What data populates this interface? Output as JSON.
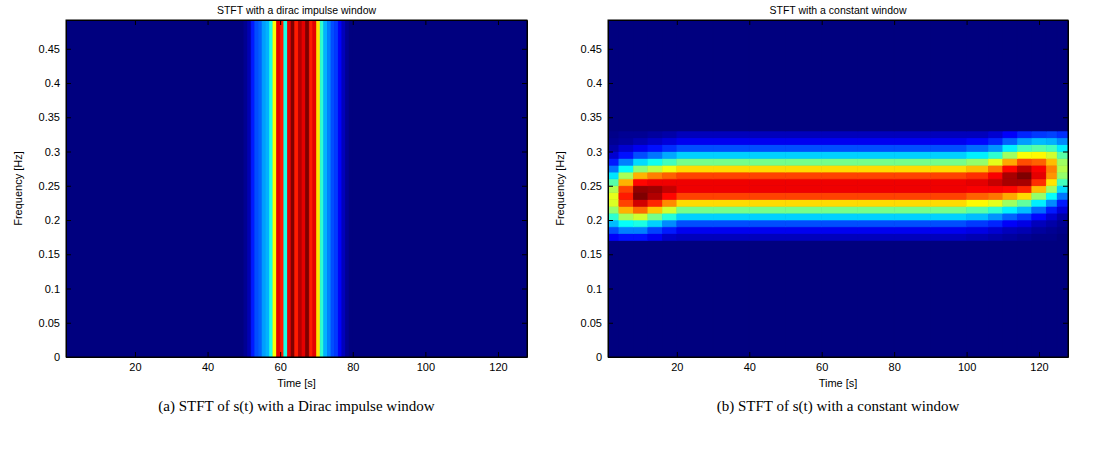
{
  "chart_data": [
    {
      "type": "heatmap",
      "title": "STFT with a dirac impulse window",
      "caption": "(a) STFT of s(t) with a Dirac impulse window",
      "x_label": "Time [s]",
      "y_label": "Frequency [Hz]",
      "xlim": [
        1,
        128
      ],
      "ylim": [
        0,
        0.492
      ],
      "xticks": [
        20,
        40,
        60,
        80,
        100,
        120
      ],
      "yticks": [
        0,
        0.05,
        0.1,
        0.15,
        0.2,
        0.25,
        0.3,
        0.35,
        0.4,
        0.45
      ],
      "zlim": [
        0,
        1
      ],
      "x_edges": [
        1,
        50,
        51,
        52,
        53,
        54,
        55,
        56,
        57,
        58,
        59,
        60,
        61,
        62,
        63,
        64,
        65,
        66,
        67,
        68,
        69,
        70,
        71,
        72,
        73,
        74,
        75,
        76,
        77,
        78,
        79,
        80,
        128
      ],
      "y_edges": [
        0,
        0.492
      ],
      "z": [
        [
          0,
          0.02,
          0.05,
          0.15,
          0.2,
          0.22,
          0.28,
          0.3,
          0.4,
          0.62,
          0.9,
          0.85,
          0.4,
          0.9,
          1,
          0.85,
          0.95,
          0.9,
          1,
          0.85,
          0.9,
          0.65,
          0.42,
          0.3,
          0.25,
          0.2,
          0.18,
          0.12,
          0.06,
          0.02,
          0,
          0
        ]
      ]
    },
    {
      "type": "heatmap",
      "title": "STFT with a constant window",
      "caption": "(b) STFT of s(t) with a constant window",
      "x_label": "Time [s]",
      "y_label": "Frequency [Hz]",
      "xlim": [
        1,
        128
      ],
      "ylim": [
        0,
        0.492
      ],
      "xticks": [
        20,
        40,
        60,
        80,
        100,
        120
      ],
      "yticks": [
        0,
        0.05,
        0.1,
        0.15,
        0.2,
        0.25,
        0.3,
        0.35,
        0.4,
        0.45
      ],
      "zlim": [
        0,
        1
      ],
      "x_edges": [
        1,
        4,
        8,
        12,
        16,
        20,
        30,
        40,
        50,
        60,
        70,
        80,
        90,
        100,
        106,
        110,
        114,
        118,
        122,
        125,
        128
      ],
      "y_edges": [
        0,
        0.17,
        0.18,
        0.19,
        0.2,
        0.21,
        0.22,
        0.23,
        0.24,
        0.25,
        0.26,
        0.27,
        0.28,
        0.29,
        0.3,
        0.31,
        0.32,
        0.33,
        0.492
      ],
      "z": [
        [
          0,
          0,
          0,
          0,
          0,
          0,
          0,
          0,
          0,
          0,
          0,
          0,
          0,
          0,
          0,
          0,
          0,
          0,
          0,
          0
        ],
        [
          0.12,
          0.14,
          0.14,
          0.11,
          0.07,
          0.06,
          0.06,
          0.06,
          0.06,
          0.06,
          0.06,
          0.06,
          0.06,
          0.05,
          0.04,
          0.03,
          0.02,
          0.01,
          0.01,
          0
        ],
        [
          0.2,
          0.25,
          0.25,
          0.19,
          0.15,
          0.11,
          0.11,
          0.11,
          0.11,
          0.11,
          0.11,
          0.11,
          0.11,
          0.1,
          0.08,
          0.06,
          0.05,
          0.03,
          0.02,
          0.01
        ],
        [
          0.31,
          0.38,
          0.4,
          0.33,
          0.26,
          0.2,
          0.2,
          0.2,
          0.2,
          0.2,
          0.2,
          0.2,
          0.2,
          0.18,
          0.16,
          0.12,
          0.1,
          0.06,
          0.04,
          0.02
        ],
        [
          0.42,
          0.54,
          0.58,
          0.49,
          0.41,
          0.33,
          0.33,
          0.33,
          0.33,
          0.33,
          0.33,
          0.33,
          0.33,
          0.31,
          0.27,
          0.22,
          0.18,
          0.13,
          0.08,
          0.04
        ],
        [
          0.52,
          0.7,
          0.77,
          0.68,
          0.58,
          0.49,
          0.49,
          0.49,
          0.49,
          0.49,
          0.49,
          0.49,
          0.49,
          0.46,
          0.42,
          0.36,
          0.31,
          0.23,
          0.15,
          0.09
        ],
        [
          0.59,
          0.81,
          0.92,
          0.84,
          0.74,
          0.66,
          0.66,
          0.66,
          0.66,
          0.66,
          0.66,
          0.66,
          0.66,
          0.63,
          0.6,
          0.53,
          0.47,
          0.36,
          0.26,
          0.15
        ],
        [
          0.6,
          0.85,
          1,
          0.95,
          0.87,
          0.81,
          0.81,
          0.81,
          0.81,
          0.81,
          0.81,
          0.81,
          0.81,
          0.78,
          0.76,
          0.71,
          0.66,
          0.52,
          0.38,
          0.24
        ],
        [
          0.55,
          0.81,
          0.98,
          0.97,
          0.93,
          0.89,
          0.89,
          0.89,
          0.89,
          0.89,
          0.89,
          0.89,
          0.89,
          0.88,
          0.88,
          0.87,
          0.84,
          0.69,
          0.53,
          0.34
        ],
        [
          0.46,
          0.7,
          0.87,
          0.89,
          0.89,
          0.89,
          0.89,
          0.89,
          0.89,
          0.89,
          0.89,
          0.89,
          0.89,
          0.9,
          0.93,
          0.96,
          0.96,
          0.83,
          0.65,
          0.44
        ],
        [
          0.35,
          0.54,
          0.7,
          0.75,
          0.78,
          0.81,
          0.81,
          0.81,
          0.81,
          0.81,
          0.81,
          0.81,
          0.81,
          0.83,
          0.88,
          0.96,
          1,
          0.9,
          0.73,
          0.52
        ],
        [
          0.24,
          0.38,
          0.51,
          0.56,
          0.61,
          0.66,
          0.66,
          0.66,
          0.66,
          0.66,
          0.66,
          0.66,
          0.66,
          0.69,
          0.76,
          0.87,
          0.94,
          0.88,
          0.75,
          0.55
        ],
        [
          0.15,
          0.25,
          0.34,
          0.39,
          0.44,
          0.49,
          0.49,
          0.49,
          0.49,
          0.49,
          0.49,
          0.49,
          0.49,
          0.52,
          0.6,
          0.71,
          0.8,
          0.78,
          0.69,
          0.53
        ],
        [
          0.08,
          0.14,
          0.2,
          0.24,
          0.29,
          0.33,
          0.33,
          0.33,
          0.33,
          0.33,
          0.33,
          0.33,
          0.33,
          0.36,
          0.42,
          0.53,
          0.62,
          0.63,
          0.58,
          0.46
        ],
        [
          0.04,
          0.08,
          0.11,
          0.14,
          0.17,
          0.2,
          0.2,
          0.2,
          0.2,
          0.2,
          0.2,
          0.2,
          0.2,
          0.23,
          0.27,
          0.36,
          0.44,
          0.46,
          0.44,
          0.36
        ],
        [
          0.02,
          0.03,
          0.05,
          0.07,
          0.09,
          0.11,
          0.11,
          0.11,
          0.11,
          0.11,
          0.11,
          0.11,
          0.11,
          0.13,
          0.16,
          0.22,
          0.28,
          0.31,
          0.3,
          0.26
        ],
        [
          0.01,
          0.02,
          0.02,
          0.03,
          0.04,
          0.06,
          0.06,
          0.06,
          0.06,
          0.06,
          0.06,
          0.06,
          0.06,
          0.06,
          0.08,
          0.12,
          0.16,
          0.18,
          0.19,
          0.17
        ],
        [
          0,
          0,
          0,
          0,
          0,
          0,
          0,
          0,
          0,
          0,
          0,
          0,
          0,
          0,
          0,
          0,
          0,
          0,
          0,
          0
        ]
      ]
    }
  ]
}
